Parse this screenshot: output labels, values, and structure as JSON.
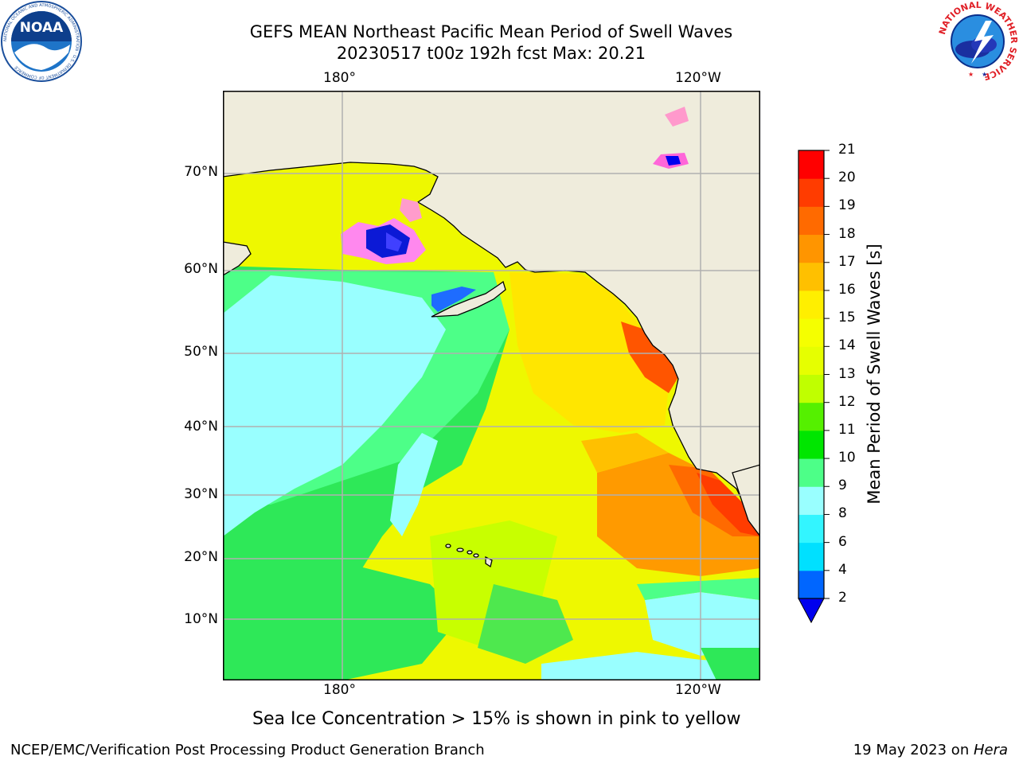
{
  "header": {
    "title_line1": "GEFS MEAN Northeast Pacific Mean Period of Swell Waves",
    "title_line2": "20230517 t00z 192h fcst   Max: 20.21"
  },
  "logos": {
    "noaa_text": "NOAA",
    "noaa_ring_text": "NATIONAL OCEANIC AND ATMOSPHERIC ADMINISTRATION · U.S. DEPARTMENT OF COMMERCE",
    "nws_ring_text": "NATIONAL WEATHER SERVICE"
  },
  "map": {
    "region": "Northeast Pacific",
    "lon_labels": [
      "180°",
      "120°W"
    ],
    "lat_labels": [
      "70°N",
      "60°N",
      "50°N",
      "40°N",
      "30°N",
      "20°N",
      "10°N"
    ],
    "gridlines": true,
    "land_color": "#efecdc",
    "coast_color": "#000000",
    "grid_color": "#b0b0b0"
  },
  "colorbar": {
    "label": "Mean Period of Swell Waves [s]",
    "ticks": [
      "21",
      "20",
      "19",
      "18",
      "17",
      "16",
      "15",
      "14",
      "13",
      "12",
      "11",
      "10",
      "9",
      "8",
      "6",
      "4",
      "2"
    ],
    "levels": [
      2,
      4,
      6,
      8,
      9,
      10,
      11,
      12,
      13,
      14,
      15,
      16,
      17,
      18,
      19,
      20,
      21
    ],
    "colors": [
      "#0066ff",
      "#00e0ff",
      "#33f5ff",
      "#99ffff",
      "#4dff88",
      "#00e600",
      "#55f000",
      "#c0ff00",
      "#e6ff00",
      "#f5ff00",
      "#ffef00",
      "#ffc000",
      "#ff9500",
      "#ff6a00",
      "#ff3c00",
      "#ff0000"
    ],
    "under_color": "#0000ee",
    "extend": "min"
  },
  "footer": {
    "note": "Sea Ice Concentration > 15% is shown in pink to yellow",
    "left": "NCEP/EMC/Verification Post Processing Product Generation Branch",
    "date": "19 May 2023 on ",
    "machine": "Hera"
  }
}
